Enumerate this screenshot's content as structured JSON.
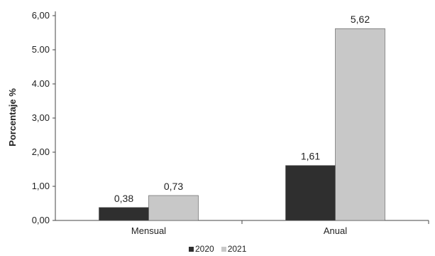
{
  "chart_data": {
    "type": "bar",
    "categories": [
      "Mensual",
      "Anual"
    ],
    "series": [
      {
        "name": "2020",
        "values": [
          0.38,
          1.61
        ],
        "labels": [
          "0,38",
          "1,61"
        ],
        "color": "#2f2f2f"
      },
      {
        "name": "2021",
        "values": [
          0.73,
          5.62
        ],
        "labels": [
          "0,73",
          "5,62"
        ],
        "color": "#c8c8c8"
      }
    ],
    "title": "",
    "xlabel": "",
    "ylabel": "Porcentaje %",
    "ylim": [
      0,
      6
    ],
    "yticks": [
      0,
      1,
      2,
      3,
      4,
      5,
      6
    ],
    "ytick_labels": [
      "0,00",
      "1,00",
      "2,00",
      "3,00",
      "4.00",
      "5.00",
      "6,00"
    ],
    "grid": false,
    "legend_position": "bottom"
  }
}
